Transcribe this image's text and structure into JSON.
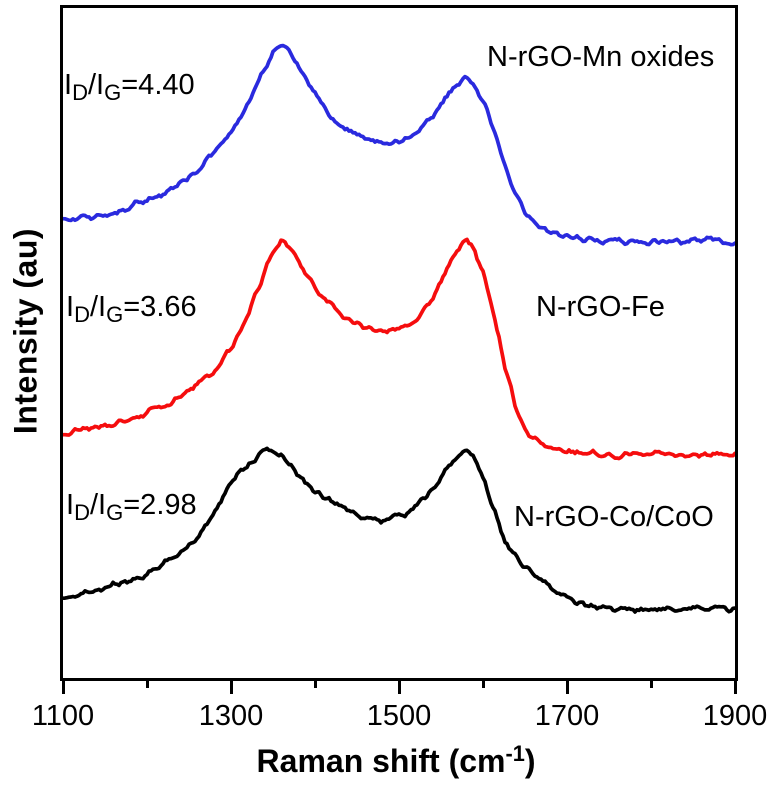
{
  "axes": {
    "y_label": "Intensity (au)",
    "x_label_main": "Raman shift (cm",
    "x_label_sup": "-1",
    "x_label_close": ")"
  },
  "chart_data": {
    "type": "line",
    "title": "",
    "xlabel": "Raman shift (cm^-1)",
    "ylabel": "Intensity (au)",
    "x_range": [
      1100,
      1900
    ],
    "x_ticks_major": [
      1100,
      1300,
      1500,
      1700,
      1900
    ],
    "x_ticks_minor": [
      1200,
      1400,
      1600,
      1800
    ],
    "grid": false,
    "legend_position": "none",
    "y_units": "arbitrary units; y values below are percent of plot height above the x-axis (stacked offsets as drawn)",
    "series": [
      {
        "name": "N-rGO-Mn oxides",
        "color": "#2a2ade",
        "ratio": {
          "base1": "I",
          "sub1": "D",
          "base2": "/I",
          "sub2": "G",
          "value": "=4.40"
        },
        "id_ig": 4.4,
        "d_band_cm": 1358,
        "g_band_cm": 1577,
        "points": [
          [
            1100,
            68.2
          ],
          [
            1132,
            68.5
          ],
          [
            1168,
            69.6
          ],
          [
            1201,
            71.1
          ],
          [
            1230,
            72.9
          ],
          [
            1257,
            75.3
          ],
          [
            1281,
            78.3
          ],
          [
            1302,
            81.8
          ],
          [
            1323,
            86.0
          ],
          [
            1338,
            90.2
          ],
          [
            1350,
            93.2
          ],
          [
            1358,
            94.3
          ],
          [
            1370,
            93.2
          ],
          [
            1385,
            90.2
          ],
          [
            1404,
            86.3
          ],
          [
            1424,
            83.0
          ],
          [
            1448,
            80.8
          ],
          [
            1471,
            79.8
          ],
          [
            1492,
            79.5
          ],
          [
            1513,
            80.4
          ],
          [
            1532,
            82.4
          ],
          [
            1550,
            85.4
          ],
          [
            1567,
            88.1
          ],
          [
            1577,
            89.6
          ],
          [
            1588,
            88.7
          ],
          [
            1599,
            86.3
          ],
          [
            1611,
            82.3
          ],
          [
            1624,
            77.4
          ],
          [
            1636,
            72.9
          ],
          [
            1650,
            69.3
          ],
          [
            1668,
            67.0
          ],
          [
            1692,
            65.8
          ],
          [
            1739,
            65.2
          ],
          [
            1799,
            64.9
          ],
          [
            1858,
            65.2
          ],
          [
            1900,
            65.0
          ]
        ]
      },
      {
        "name": "N-rGO-Fe",
        "color": "#f50d0e",
        "ratio": {
          "base1": "I",
          "sub1": "D",
          "base2": "/I",
          "sub2": "G",
          "value": "=3.66"
        },
        "id_ig": 3.66,
        "d_band_cm": 1360,
        "g_band_cm": 1581,
        "points": [
          [
            1100,
            36.6
          ],
          [
            1138,
            37.2
          ],
          [
            1180,
            38.4
          ],
          [
            1215,
            40.2
          ],
          [
            1245,
            42.1
          ],
          [
            1275,
            45.1
          ],
          [
            1299,
            48.8
          ],
          [
            1320,
            54.0
          ],
          [
            1337,
            59.2
          ],
          [
            1350,
            63.7
          ],
          [
            1360,
            65.5
          ],
          [
            1373,
            63.7
          ],
          [
            1388,
            60.4
          ],
          [
            1412,
            56.3
          ],
          [
            1442,
            53.3
          ],
          [
            1471,
            51.8
          ],
          [
            1493,
            51.5
          ],
          [
            1515,
            52.7
          ],
          [
            1535,
            55.4
          ],
          [
            1552,
            59.5
          ],
          [
            1569,
            63.4
          ],
          [
            1581,
            65.2
          ],
          [
            1590,
            63.7
          ],
          [
            1601,
            60.1
          ],
          [
            1613,
            54.0
          ],
          [
            1626,
            46.6
          ],
          [
            1638,
            40.6
          ],
          [
            1652,
            36.6
          ],
          [
            1670,
            34.5
          ],
          [
            1698,
            33.6
          ],
          [
            1763,
            33.2
          ],
          [
            1835,
            33.3
          ],
          [
            1900,
            33.2
          ]
        ]
      },
      {
        "name": "N-rGO-Co/CoO",
        "color": "#000000",
        "ratio": {
          "base1": "I",
          "sub1": "D",
          "base2": "/I",
          "sub2": "G",
          "value": "=2.98"
        },
        "id_ig": 2.98,
        "d_band_cm": 1346,
        "g_band_cm": 1580,
        "points": [
          [
            1100,
            11.9
          ],
          [
            1144,
            13.1
          ],
          [
            1192,
            15.0
          ],
          [
            1227,
            17.6
          ],
          [
            1257,
            20.5
          ],
          [
            1281,
            24.7
          ],
          [
            1301,
            29.2
          ],
          [
            1323,
            32.1
          ],
          [
            1337,
            33.6
          ],
          [
            1346,
            33.9
          ],
          [
            1361,
            32.7
          ],
          [
            1376,
            31.0
          ],
          [
            1400,
            27.7
          ],
          [
            1430,
            25.3
          ],
          [
            1460,
            23.8
          ],
          [
            1483,
            23.4
          ],
          [
            1507,
            24.3
          ],
          [
            1531,
            26.8
          ],
          [
            1551,
            30.2
          ],
          [
            1568,
            32.7
          ],
          [
            1580,
            33.9
          ],
          [
            1589,
            32.7
          ],
          [
            1600,
            29.8
          ],
          [
            1612,
            25.3
          ],
          [
            1626,
            20.5
          ],
          [
            1642,
            17.3
          ],
          [
            1662,
            15.3
          ],
          [
            1686,
            12.8
          ],
          [
            1710,
            11.3
          ],
          [
            1739,
            10.4
          ],
          [
            1799,
            10.1
          ],
          [
            1858,
            10.3
          ],
          [
            1900,
            10.1
          ]
        ]
      }
    ]
  }
}
